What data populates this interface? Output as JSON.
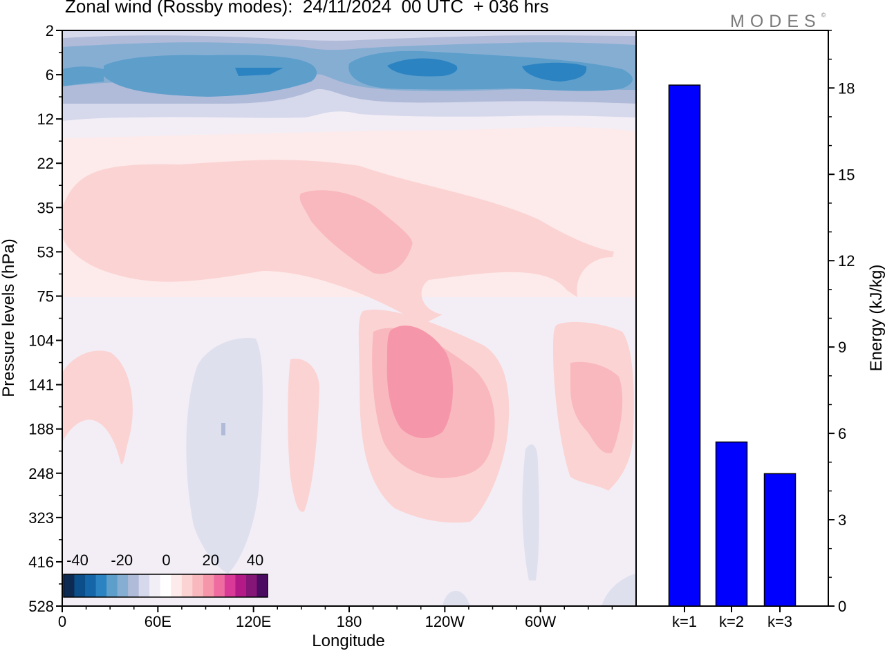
{
  "title": "Zonal wind (Rossby modes):  24/11/2024  00 UTC  + 036 hrs",
  "logo_text": "MODES",
  "logo_mark": "©",
  "chart_data": [
    {
      "type": "heatmap",
      "xlabel": "Longitude",
      "ylabel": "Pressure levels (hPa)",
      "x_ticks": [
        "0",
        "60E",
        "120E",
        "180",
        "120W",
        "60W"
      ],
      "y_ticks": [
        "2",
        "6",
        "12",
        "22",
        "35",
        "53",
        "75",
        "104",
        "141",
        "188",
        "248",
        "323",
        "416",
        "528"
      ],
      "colorbar": {
        "labels": [
          "-40",
          "-20",
          "0",
          "20",
          "40"
        ],
        "colors": [
          "#0d2b52",
          "#0c4e8a",
          "#1566a8",
          "#2c83c2",
          "#5d9ecb",
          "#86aed3",
          "#b0bbd9",
          "#d6d8eb",
          "#f2eef6",
          "#ffffff",
          "#fdeaea",
          "#fbd3d3",
          "#f9b8bd",
          "#f696aa",
          "#ef6ca0",
          "#d93a97",
          "#b31a88",
          "#851577",
          "#4a0b60"
        ]
      }
    },
    {
      "type": "bar",
      "ylabel": "Energy (kJ/kg)",
      "categories": [
        "k=1",
        "k=2",
        "k=3"
      ],
      "values": [
        18.1,
        5.7,
        4.6
      ],
      "ylim": [
        0,
        20
      ],
      "y_ticks": [
        "0",
        "3",
        "6",
        "9",
        "12",
        "15",
        "18"
      ],
      "bar_color": "#0000ff"
    }
  ]
}
